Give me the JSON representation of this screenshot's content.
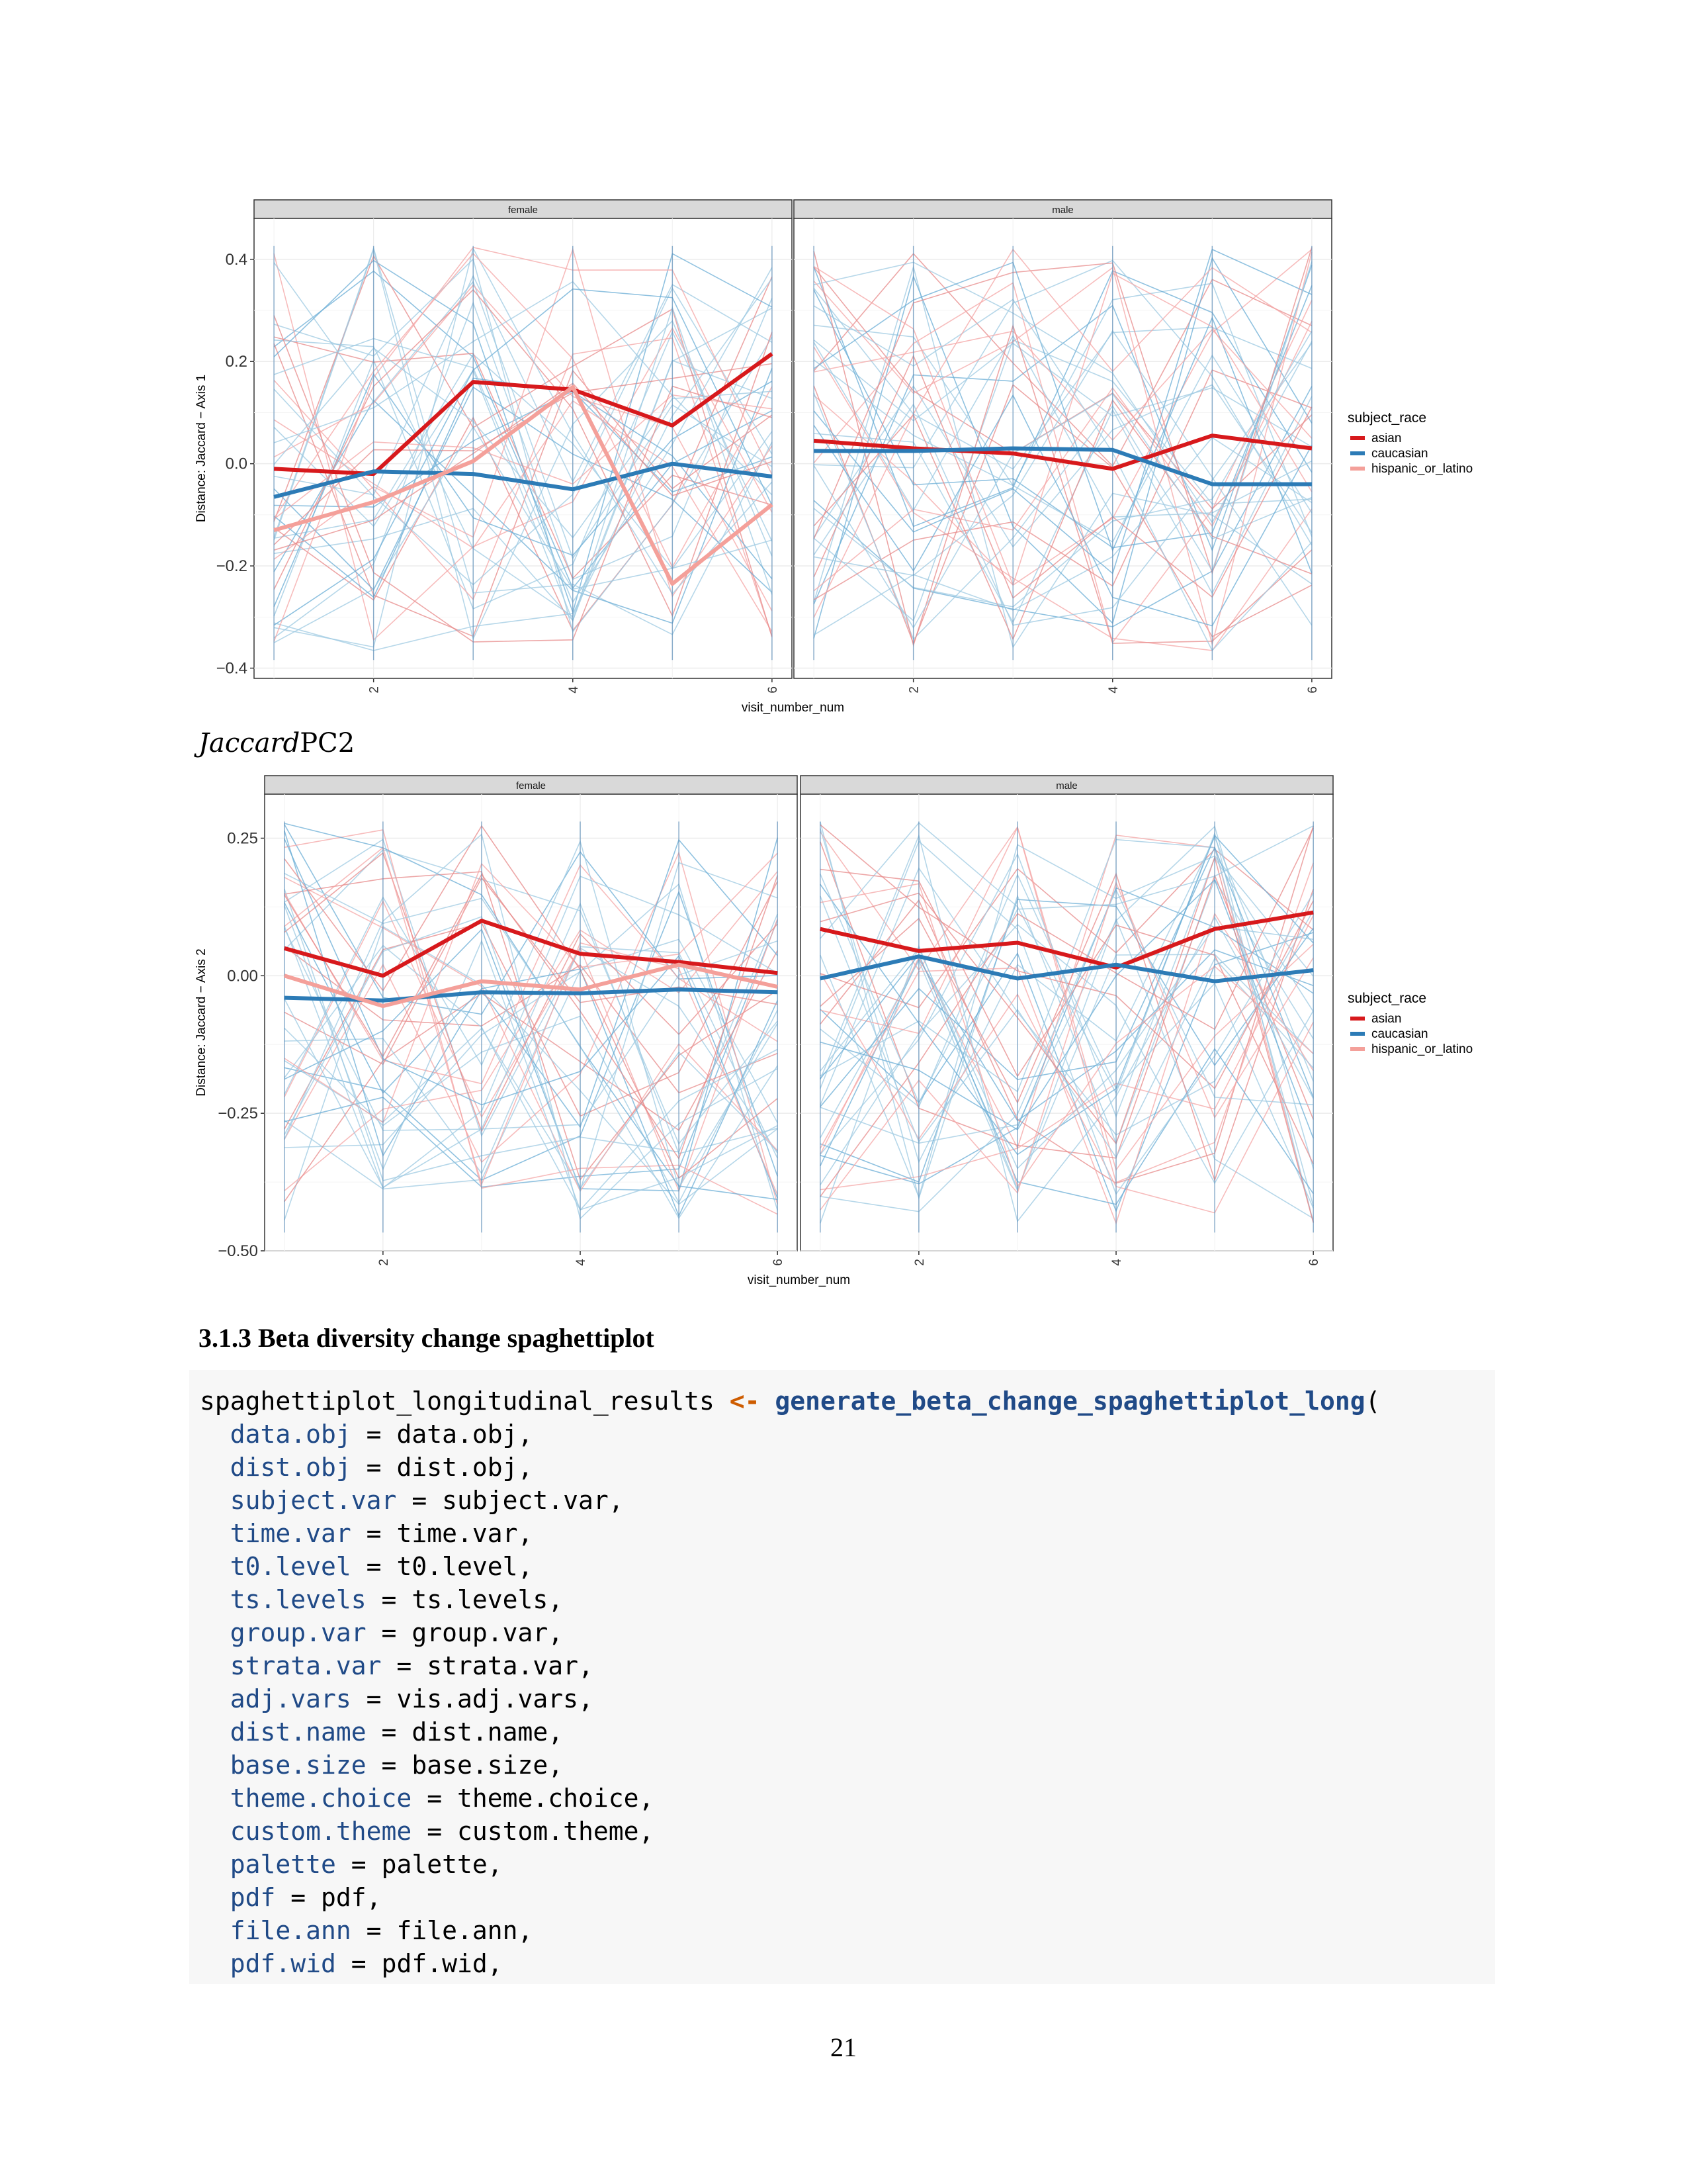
{
  "chart_data": [
    {
      "type": "line",
      "xlabel": "visit_number_num",
      "ylabel": "Distance: Jaccard − Axis 1",
      "ylim": [
        -0.42,
        0.48
      ],
      "xlim": [
        0.8,
        6.2
      ],
      "yticks": [
        -0.4,
        -0.2,
        0.0,
        0.2,
        0.4
      ],
      "ytick_labels": [
        "−0.4",
        "−0.2",
        "0.0",
        "0.2",
        "0.4"
      ],
      "xticks": [
        2,
        4,
        6
      ],
      "xtick_labels": [
        "2",
        "4",
        "6"
      ],
      "legend_title": "subject_race",
      "legend_position": "right",
      "grid": true,
      "panels": [
        {
          "name": "female",
          "x": [
            1,
            2,
            3,
            4,
            5,
            6
          ],
          "series": [
            {
              "name": "asian",
              "color": "#d7191c",
              "values": [
                -0.01,
                -0.02,
                0.16,
                0.145,
                0.075,
                0.215
              ]
            },
            {
              "name": "caucasian",
              "color": "#2c7bb6",
              "values": [
                -0.065,
                -0.015,
                -0.02,
                -0.05,
                0.0,
                -0.025
              ]
            },
            {
              "name": "hispanic_or_latino",
              "color": "#f4a09a",
              "values": [
                -0.13,
                -0.075,
                0.005,
                0.15,
                -0.235,
                -0.08
              ]
            }
          ]
        },
        {
          "name": "male",
          "x": [
            1,
            2,
            3,
            4,
            5,
            6
          ],
          "series": [
            {
              "name": "asian",
              "color": "#d7191c",
              "values": [
                0.045,
                0.03,
                0.02,
                -0.01,
                0.055,
                0.03
              ]
            },
            {
              "name": "caucasian",
              "color": "#2c7bb6",
              "values": [
                0.025,
                0.025,
                0.03,
                0.027,
                -0.04,
                -0.04
              ]
            }
          ]
        }
      ]
    },
    {
      "type": "line",
      "xlabel": "visit_number_num",
      "ylabel": "Distance: Jaccard − Axis 2",
      "ylim": [
        -0.5,
        0.33
      ],
      "xlim": [
        0.8,
        6.2
      ],
      "yticks": [
        -0.5,
        -0.25,
        0.0,
        0.25
      ],
      "ytick_labels": [
        "−0.50",
        "−0.25",
        "0.00",
        "0.25"
      ],
      "xticks": [
        2,
        4,
        6
      ],
      "xtick_labels": [
        "2",
        "4",
        "6"
      ],
      "legend_title": "subject_race",
      "legend_position": "right",
      "grid": true,
      "panels": [
        {
          "name": "female",
          "x": [
            1,
            2,
            3,
            4,
            5,
            6
          ],
          "series": [
            {
              "name": "asian",
              "color": "#d7191c",
              "values": [
                0.05,
                0.0,
                0.1,
                0.04,
                0.025,
                0.005
              ]
            },
            {
              "name": "caucasian",
              "color": "#2c7bb6",
              "values": [
                -0.04,
                -0.045,
                -0.03,
                -0.032,
                -0.025,
                -0.03
              ]
            },
            {
              "name": "hispanic_or_latino",
              "color": "#f4a09a",
              "values": [
                0.0,
                -0.055,
                -0.01,
                -0.025,
                0.02,
                -0.02
              ]
            }
          ]
        },
        {
          "name": "male",
          "x": [
            1,
            2,
            3,
            4,
            5,
            6
          ],
          "series": [
            {
              "name": "asian",
              "color": "#d7191c",
              "values": [
                0.085,
                0.045,
                0.06,
                0.015,
                0.085,
                0.115
              ]
            },
            {
              "name": "caucasian",
              "color": "#2c7bb6",
              "values": [
                -0.005,
                0.035,
                -0.005,
                0.02,
                -0.01,
                0.01
              ]
            }
          ]
        }
      ]
    }
  ],
  "legend": {
    "title": "subject_race",
    "items": [
      {
        "label": "asian",
        "color": "#d7191c"
      },
      {
        "label": "caucasian",
        "color": "#2c7bb6"
      },
      {
        "label": "hispanic_or_latino",
        "color": "#f4a09a"
      }
    ]
  },
  "section_label": {
    "italic": "Jaccard",
    "roman": "PC2"
  },
  "heading": "3.1.3 Beta diversity change spaghettiplot",
  "code": {
    "first_line": {
      "var": "spaghettiplot_longitudinal_results",
      "op": "<-",
      "fn": "generate_beta_change_spaghettiplot_long",
      "paren": "("
    },
    "args": [
      {
        "name": "data.obj",
        "value": "data.obj,"
      },
      {
        "name": "dist.obj",
        "value": "dist.obj,"
      },
      {
        "name": "subject.var",
        "value": "subject.var,"
      },
      {
        "name": "time.var",
        "value": "time.var,"
      },
      {
        "name": "t0.level",
        "value": "t0.level,"
      },
      {
        "name": "ts.levels",
        "value": "ts.levels,"
      },
      {
        "name": "group.var",
        "value": "group.var,"
      },
      {
        "name": "strata.var",
        "value": "strata.var,"
      },
      {
        "name": "adj.vars",
        "value": "vis.adj.vars,"
      },
      {
        "name": "dist.name",
        "value": "dist.name,"
      },
      {
        "name": "base.size",
        "value": "base.size,"
      },
      {
        "name": "theme.choice",
        "value": "theme.choice,"
      },
      {
        "name": "custom.theme",
        "value": "custom.theme,"
      },
      {
        "name": "palette",
        "value": "palette,"
      },
      {
        "name": "pdf",
        "value": "pdf,"
      },
      {
        "name": "file.ann",
        "value": "file.ann,"
      },
      {
        "name": "pdf.wid",
        "value": "pdf.wid,"
      }
    ]
  },
  "page_number": "21"
}
